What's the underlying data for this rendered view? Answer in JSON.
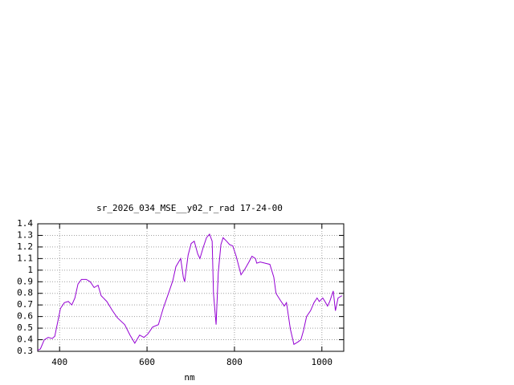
{
  "chart_data": {
    "type": "line",
    "title": "sr_2026_034_MSE__y02_r_rad 17-24-00",
    "xlabel": "nm",
    "x": [
      350,
      356,
      365,
      374,
      383,
      389,
      396,
      402,
      411,
      420,
      428,
      435,
      442,
      450,
      461,
      470,
      479,
      488,
      495,
      508,
      521,
      532,
      549,
      561,
      572,
      583,
      593,
      602,
      613,
      626,
      637,
      650,
      659,
      666,
      677,
      683,
      686,
      694,
      701,
      708,
      716,
      721,
      728,
      736,
      743,
      749,
      752,
      758,
      763,
      769,
      774,
      782,
      789,
      796,
      804,
      815,
      824,
      833,
      840,
      848,
      851,
      859,
      870,
      881,
      890,
      895,
      905,
      914,
      919,
      928,
      936,
      945,
      952,
      958,
      965,
      974,
      982,
      989,
      994,
      1002,
      1007,
      1013,
      1018,
      1026,
      1031,
      1037,
      1046
    ],
    "series": [
      {
        "color": "#9400d3",
        "values": [
          0.31,
          0.32,
          0.4,
          0.42,
          0.41,
          0.43,
          0.56,
          0.67,
          0.72,
          0.73,
          0.7,
          0.76,
          0.88,
          0.92,
          0.92,
          0.9,
          0.85,
          0.87,
          0.78,
          0.73,
          0.65,
          0.59,
          0.53,
          0.44,
          0.37,
          0.44,
          0.42,
          0.45,
          0.51,
          0.53,
          0.67,
          0.81,
          0.91,
          1.03,
          1.1,
          0.94,
          0.9,
          1.13,
          1.23,
          1.25,
          1.14,
          1.1,
          1.19,
          1.28,
          1.31,
          1.25,
          0.8,
          0.53,
          0.98,
          1.22,
          1.28,
          1.25,
          1.22,
          1.21,
          1.12,
          0.96,
          1.01,
          1.07,
          1.12,
          1.1,
          1.06,
          1.07,
          1.06,
          1.05,
          0.94,
          0.8,
          0.74,
          0.69,
          0.72,
          0.49,
          0.36,
          0.38,
          0.4,
          0.48,
          0.6,
          0.65,
          0.72,
          0.76,
          0.73,
          0.76,
          0.73,
          0.69,
          0.73,
          0.82,
          0.65,
          0.76,
          0.78
        ]
      }
    ],
    "xlim": [
      350,
      1050
    ],
    "ylim": [
      0.3,
      1.4
    ],
    "xticks": [
      400,
      600,
      800,
      1000
    ],
    "yticks": [
      1.4,
      1.3,
      1.2,
      1.1,
      1,
      0.9,
      0.8,
      0.7,
      0.6,
      0.5,
      0.4,
      0.3
    ],
    "grid": true
  }
}
